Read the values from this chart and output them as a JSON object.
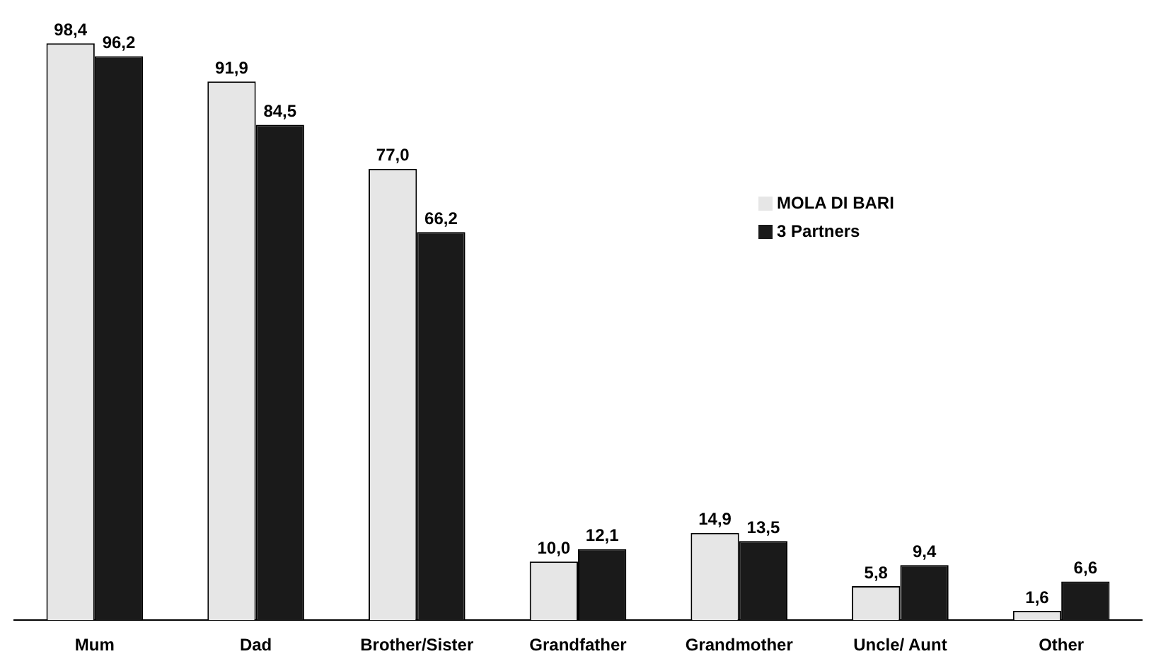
{
  "chart_data": {
    "type": "bar",
    "categories": [
      "Mum",
      "Dad",
      "Brother/Sister",
      "Grandfather",
      "Grandmother",
      "Uncle/ Aunt",
      "Other"
    ],
    "series": [
      {
        "name": "MOLA DI BARI",
        "color": "#e6e6e6",
        "values": [
          98.4,
          91.9,
          77.0,
          10.0,
          14.9,
          5.8,
          1.6
        ],
        "value_labels": [
          "98,4",
          "91,9",
          "77,0",
          "10,0",
          "14,9",
          "5,8",
          "1,6"
        ]
      },
      {
        "name": "3 Partners",
        "color": "#1a1a1a",
        "values": [
          96.2,
          84.5,
          66.2,
          12.1,
          13.5,
          9.4,
          6.6
        ],
        "value_labels": [
          "96,2",
          "84,5",
          "66,2",
          "12,1",
          "13,5",
          "9,4",
          "6,6"
        ]
      }
    ],
    "tick_labels": "x",
    "legend": "top right",
    "grid": false
  }
}
